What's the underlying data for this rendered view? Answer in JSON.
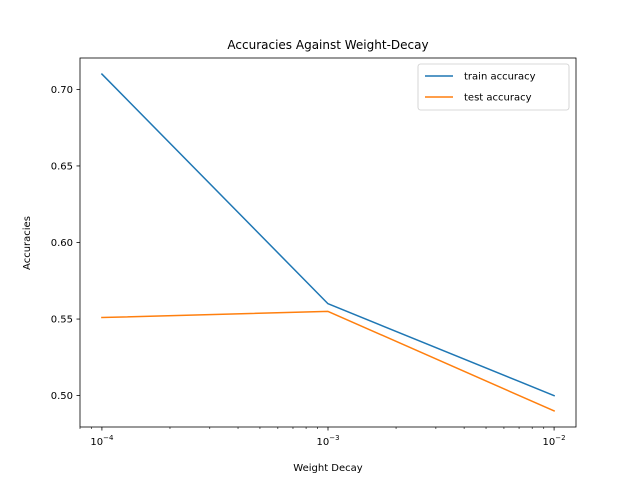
{
  "chart_data": {
    "type": "line",
    "title": "Accuracies Against Weight-Decay",
    "xlabel": "Weight Decay",
    "ylabel": "Accuracies",
    "x_scale": "log",
    "x": [
      0.0001,
      0.001,
      0.01
    ],
    "x_tick_labels": [
      {
        "base": "10",
        "exp": "−4"
      },
      {
        "base": "10",
        "exp": "−3"
      },
      {
        "base": "10",
        "exp": "−2"
      }
    ],
    "y_ticks": [
      "0.50",
      "0.55",
      "0.60",
      "0.65",
      "0.70"
    ],
    "xlim": [
      8e-05,
      0.0125
    ],
    "ylim": [
      0.4795,
      0.7205
    ],
    "grid": false,
    "legend_position": "upper right",
    "series": [
      {
        "name": "train accuracy",
        "color": "#1f77b4",
        "values": [
          0.71,
          0.56,
          0.5
        ]
      },
      {
        "name": "test accuracy",
        "color": "#ff7f0e",
        "values": [
          0.551,
          0.555,
          0.49
        ]
      }
    ]
  }
}
